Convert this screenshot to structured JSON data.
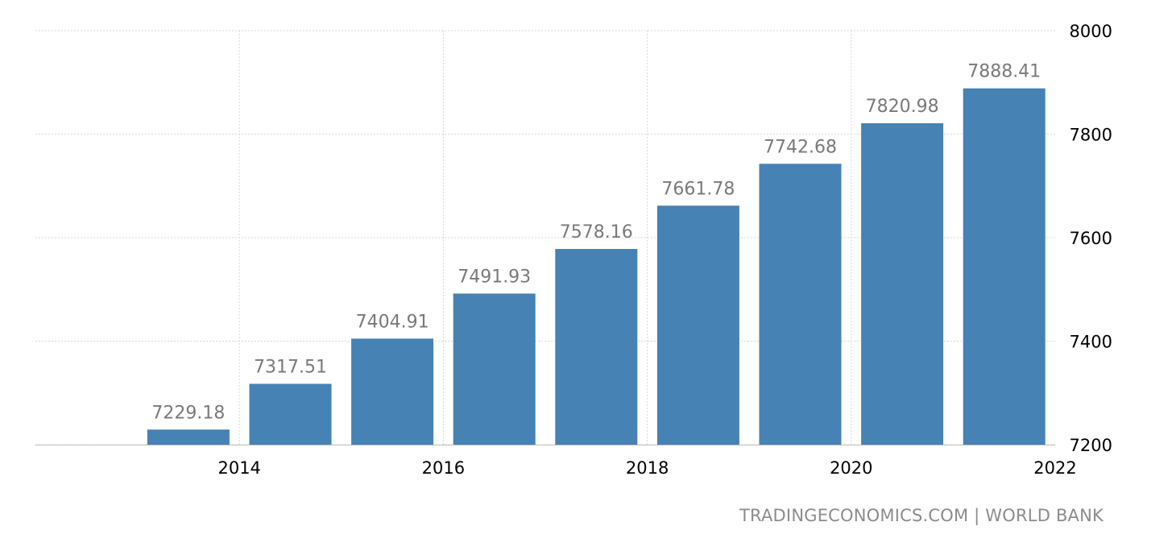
{
  "chart_data": {
    "type": "bar",
    "x": [
      2013,
      2014,
      2015,
      2016,
      2017,
      2018,
      2019,
      2020,
      2021
    ],
    "values": [
      7229.18,
      7317.51,
      7404.91,
      7491.93,
      7578.16,
      7661.78,
      7742.68,
      7820.98,
      7888.41
    ],
    "value_labels": [
      "7229.18",
      "7317.51",
      "7404.91",
      "7491.93",
      "7578.16",
      "7661.78",
      "7742.68",
      "7820.98",
      "7888.41"
    ],
    "x_ticks": [
      2014,
      2016,
      2018,
      2020,
      2022
    ],
    "y_ticks": [
      7200,
      7400,
      7600,
      7800,
      8000
    ],
    "ylim": [
      7200,
      8000
    ],
    "xlim": [
      2012,
      2022
    ],
    "y_axis_position": "right",
    "grid": true,
    "legend": "none",
    "title": "",
    "xlabel": "",
    "ylabel": "",
    "colors": {
      "bar": "#4682b4",
      "value_label": "#7a7a7a",
      "tick_label": "#000000",
      "grid": "#d9d9d9"
    }
  },
  "source_text": "TRADINGECONOMICS.COM | WORLD BANK"
}
